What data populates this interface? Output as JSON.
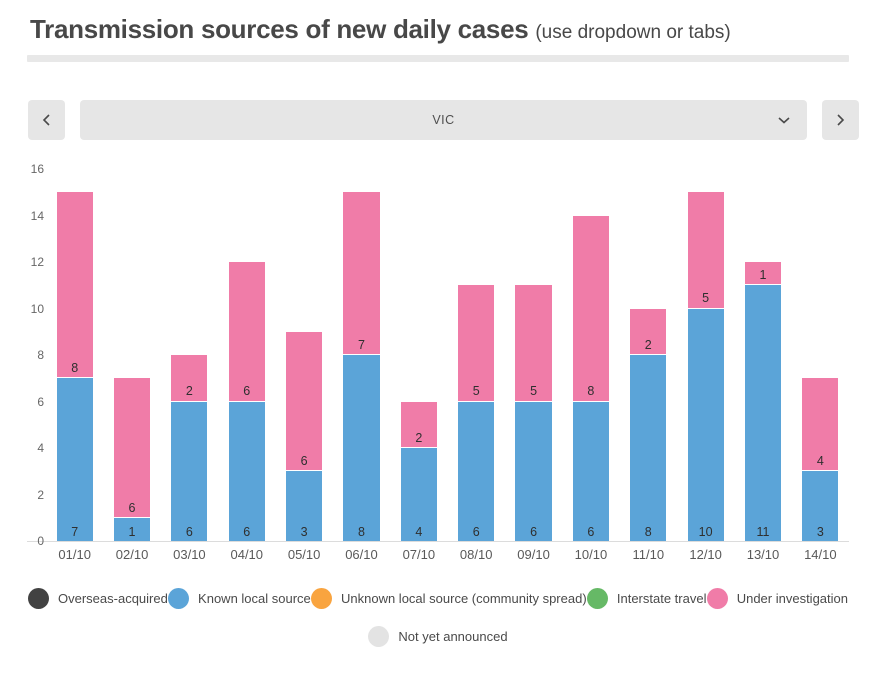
{
  "header": {
    "title": "Transmission sources of new daily cases",
    "subtitle": "(use dropdown or tabs)"
  },
  "controls": {
    "selected_region": "VIC"
  },
  "chart_data": {
    "type": "bar",
    "stacked": true,
    "grid": false,
    "title": "",
    "xlabel": "",
    "ylabel": "",
    "ylim": [
      0,
      16
    ],
    "yticks": [
      0,
      2,
      4,
      6,
      8,
      10,
      12,
      14,
      16
    ],
    "categories": [
      "01/10",
      "02/10",
      "03/10",
      "04/10",
      "05/10",
      "06/10",
      "07/10",
      "08/10",
      "09/10",
      "10/10",
      "11/10",
      "12/10",
      "13/10",
      "14/10"
    ],
    "series": [
      {
        "name": "Known local source",
        "color": "#5ba4d8",
        "values": [
          7,
          1,
          6,
          6,
          3,
          8,
          4,
          6,
          6,
          6,
          8,
          10,
          11,
          3
        ]
      },
      {
        "name": "Under investigation",
        "color": "#f07ca8",
        "values": [
          8,
          6,
          2,
          6,
          6,
          7,
          2,
          5,
          5,
          8,
          2,
          5,
          1,
          4
        ]
      }
    ],
    "legend_position": "bottom"
  },
  "legend": {
    "row1": [
      {
        "label": "Overseas-acquired",
        "color": "#424242"
      },
      {
        "label": "Known local source",
        "color": "#5ba4d8"
      },
      {
        "label": "Unknown local source (community spread)",
        "color": "#f9a43f"
      },
      {
        "label": "Interstate travel",
        "color": "#66b966"
      },
      {
        "label": "Under investigation",
        "color": "#f07ca8"
      }
    ],
    "row2": [
      {
        "label": "Not yet announced",
        "color": "#e3e3e3"
      }
    ]
  }
}
